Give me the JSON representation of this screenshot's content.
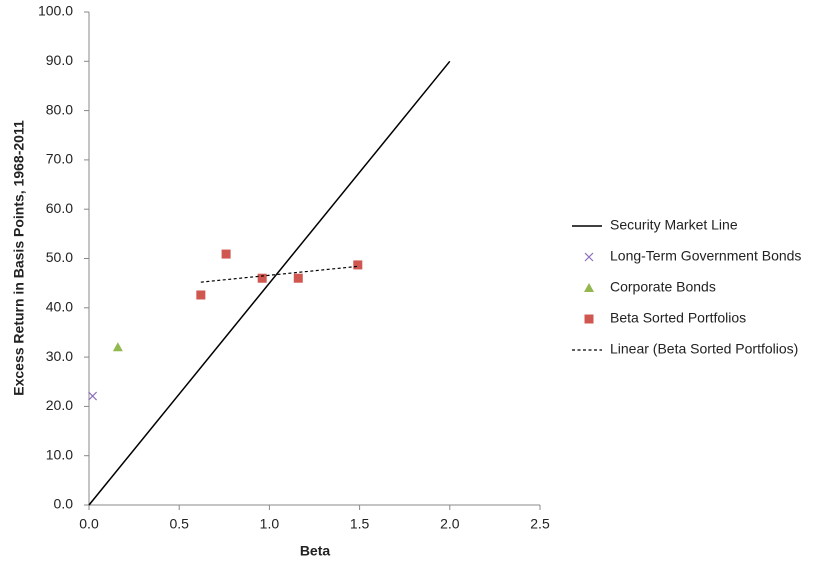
{
  "chart_data": {
    "type": "scatter",
    "x_label": "Beta",
    "y_label": "Excess Return in Basis Points, 1968-2011",
    "xlim": [
      0,
      2.5
    ],
    "ylim": [
      0,
      100
    ],
    "xticks": [
      {
        "value": 0,
        "label": "0.0"
      },
      {
        "value": 0.5,
        "label": "0.5"
      },
      {
        "value": 1,
        "label": "1.0"
      },
      {
        "value": 1.5,
        "label": "1.5"
      },
      {
        "value": 2,
        "label": "2.0"
      },
      {
        "value": 2.5,
        "label": "2.5"
      }
    ],
    "yticks": [
      {
        "value": 0,
        "label": "0.0"
      },
      {
        "value": 10,
        "label": "10.0"
      },
      {
        "value": 20,
        "label": "20.0"
      },
      {
        "value": 30,
        "label": "30.0"
      },
      {
        "value": 40,
        "label": "40.0"
      },
      {
        "value": 50,
        "label": "50.0"
      },
      {
        "value": 60,
        "label": "60.0"
      },
      {
        "value": 70,
        "label": "70.0"
      },
      {
        "value": 80,
        "label": "80.0"
      },
      {
        "value": 90,
        "label": "90.0"
      },
      {
        "value": 100,
        "label": "100.0"
      }
    ],
    "grid": false,
    "legend": "right",
    "series": [
      {
        "name": "Security Market Line",
        "style": "solid",
        "color": "#000000",
        "x": [
          0,
          2.0
        ],
        "values": [
          0,
          90
        ]
      },
      {
        "name": "Long-Term Government Bonds",
        "style": "cross",
        "color": "#8e6fbf",
        "x": [
          0.02
        ],
        "values": [
          22.1
        ]
      },
      {
        "name": "Corporate Bonds",
        "style": "triangle",
        "color": "#93b84f",
        "x": [
          0.16
        ],
        "values": [
          32.0
        ]
      },
      {
        "name": "Beta Sorted Portfolios",
        "style": "square",
        "color": "#d0574f",
        "x": [
          0.62,
          0.76,
          0.96,
          1.16,
          1.49
        ],
        "values": [
          42.6,
          50.9,
          46.0,
          46.0,
          48.7
        ]
      },
      {
        "name": "Linear (Beta Sorted Portfolios)",
        "style": "dashed",
        "color": "#000000",
        "x": [
          0.62,
          1.49
        ],
        "values": [
          45.2,
          48.4
        ]
      }
    ]
  }
}
